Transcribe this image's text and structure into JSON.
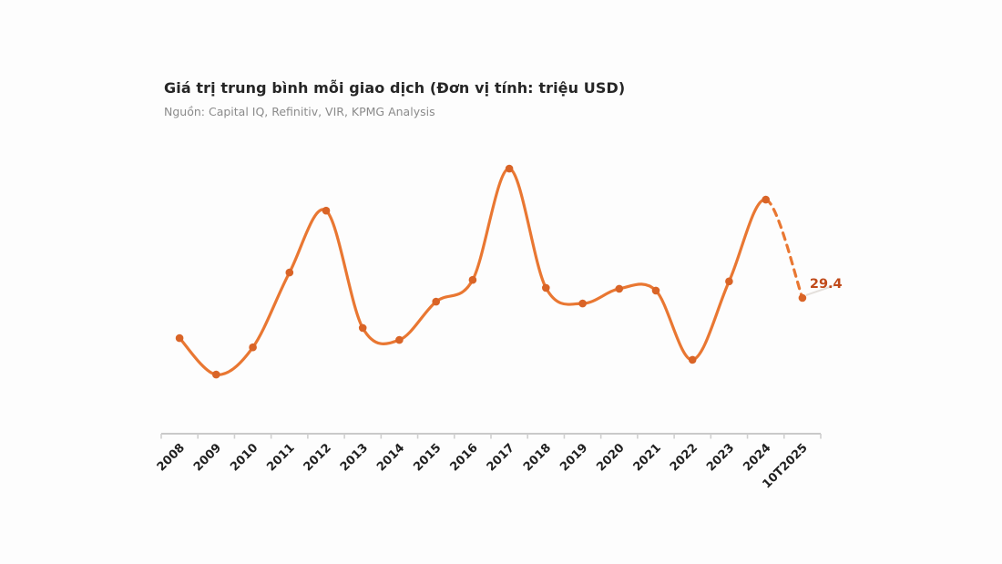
{
  "chart": {
    "title": "Giá trị trung bình mỗi giao dịch (Đơn vị tính: triệu USD)",
    "source": "Nguồn: Capital IQ, Refinitiv, VIR, KPMG Analysis",
    "annotation": {
      "label": "29.4",
      "category": "10T2025"
    },
    "colors": {
      "line": "#e97732",
      "marker": "#d96427",
      "annotation": "#c04a1a",
      "axis": "#c9c9c9",
      "tick": "#cfcfcf",
      "tick_label": "#1f1f1f",
      "leader": "#e4e0dc",
      "background": "#fdfdfd"
    }
  },
  "chart_data": {
    "type": "line",
    "title": "Giá trị trung bình mỗi giao dịch (Đơn vị tính: triệu USD)",
    "subtitle": "Nguồn: Capital IQ, Refinitiv, VIR, KPMG Analysis",
    "xlabel": "",
    "ylabel": "triệu USD",
    "categories": [
      "2008",
      "2009",
      "2010",
      "2011",
      "2012",
      "2013",
      "2014",
      "2015",
      "2016",
      "2017",
      "2018",
      "2019",
      "2020",
      "2021",
      "2022",
      "2023",
      "2024",
      "10T2025"
    ],
    "values": [
      20.7,
      12.8,
      18.7,
      34.9,
      48.3,
      22.9,
      20.3,
      28.6,
      33.3,
      57.4,
      31.6,
      28.2,
      31.4,
      31.0,
      16.0,
      33.0,
      50.7,
      29.4
    ],
    "ylim": [
      0,
      62
    ],
    "grid": false,
    "legend": "none",
    "y_axis_shown": false,
    "smooth": true,
    "markers": true,
    "last_segment_style": "dashed",
    "labeled_points": [
      {
        "category": "10T2025",
        "value": 29.4,
        "label": "29.4"
      }
    ]
  }
}
